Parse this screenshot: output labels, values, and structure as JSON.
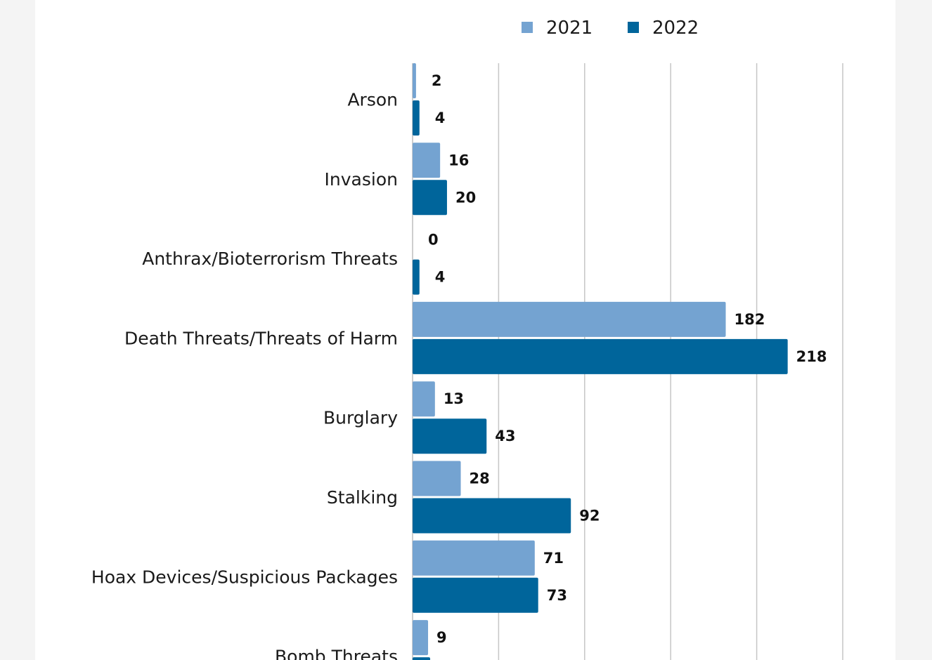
{
  "chart_data": {
    "type": "bar",
    "orientation": "horizontal",
    "categories": [
      "Arson",
      "Invasion",
      "Anthrax/Bioterrorism Threats",
      "Death Threats/Threats of Harm",
      "Burglary",
      "Stalking",
      "Hoax Devices/Suspicious Packages",
      "Bomb Threats"
    ],
    "series": [
      {
        "name": "2021",
        "color": "#74a3d1",
        "values": [
          2,
          16,
          0,
          182,
          13,
          28,
          71,
          9
        ]
      },
      {
        "name": "2022",
        "color": "#00659b",
        "values": [
          4,
          20,
          4,
          218,
          43,
          92,
          73,
          null
        ]
      }
    ],
    "xlim": [
      0,
      250
    ],
    "grid": true,
    "legend": "top-center"
  }
}
